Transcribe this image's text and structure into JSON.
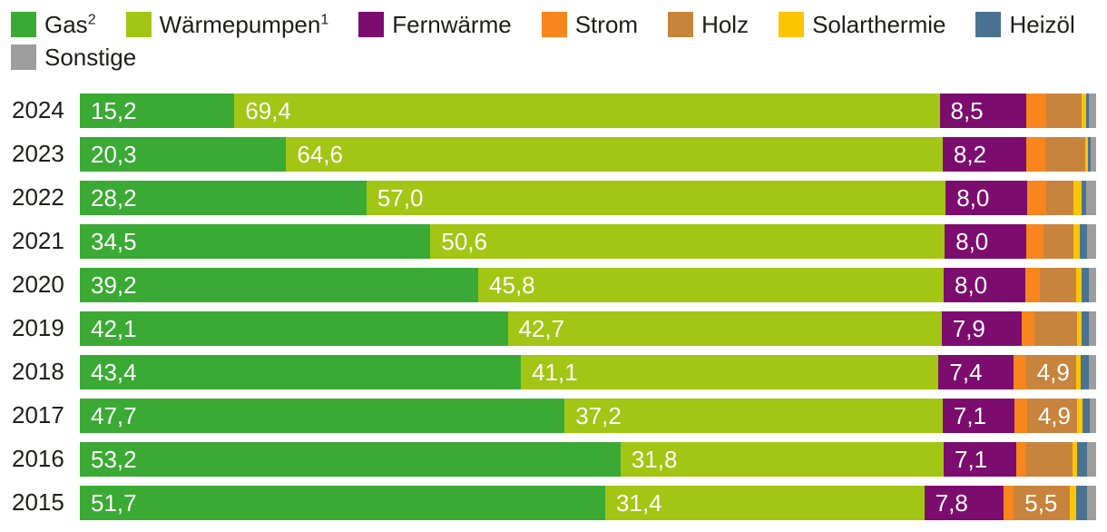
{
  "accent_colors": {
    "gas": "#3aaa35",
    "waermepumpen": "#a3c514",
    "fernwaerme": "#7c0d6e",
    "strom": "#f8861d",
    "holz": "#c8843c",
    "solarthermie": "#fcc500",
    "heizoel": "#4a7392",
    "sonstige": "#9d9d9d",
    "text": "#1d1d1b",
    "bar_label": "#ffffff"
  },
  "legend": {
    "rows": [
      [
        {
          "key": "gas",
          "label": "Gas",
          "sup": "2",
          "color": "#3aaa35"
        },
        {
          "key": "waermepumpen",
          "label": "Wärmepumpen",
          "sup": "1",
          "color": "#a3c514"
        },
        {
          "key": "fernwaerme",
          "label": "Fernwärme",
          "sup": "",
          "color": "#7c0d6e"
        },
        {
          "key": "strom",
          "label": "Strom",
          "sup": "",
          "color": "#f8861d"
        },
        {
          "key": "holz",
          "label": "Holz",
          "sup": "",
          "color": "#c8843c"
        },
        {
          "key": "solarthermie",
          "label": "Solarthermie",
          "sup": "",
          "color": "#fcc500"
        },
        {
          "key": "heizoel",
          "label": "Heizöl",
          "sup": "",
          "color": "#4a7392"
        }
      ],
      [
        {
          "key": "sonstige",
          "label": "Sonstige",
          "sup": "",
          "color": "#9d9d9d"
        }
      ]
    ]
  },
  "chart_data": {
    "type": "bar",
    "stacked": true,
    "orientation": "horizontal",
    "unit": "percent",
    "xlim": [
      0,
      100
    ],
    "grid": false,
    "legend_position": "top",
    "decimal_separator": ",",
    "label_threshold": 4.9,
    "categories": [
      "2024",
      "2023",
      "2022",
      "2021",
      "2020",
      "2019",
      "2018",
      "2017",
      "2016",
      "2015"
    ],
    "series": [
      {
        "key": "gas",
        "name": "Gas",
        "color": "#3aaa35",
        "values": [
          15.2,
          20.3,
          28.2,
          34.5,
          39.2,
          42.1,
          43.4,
          47.7,
          53.2,
          51.7
        ]
      },
      {
        "key": "waermepumpen",
        "name": "Wärmepumpen",
        "color": "#a3c514",
        "values": [
          69.4,
          64.6,
          57.0,
          50.6,
          45.8,
          42.7,
          41.1,
          37.2,
          31.8,
          31.4
        ]
      },
      {
        "key": "fernwaerme",
        "name": "Fernwärme",
        "color": "#7c0d6e",
        "values": [
          8.5,
          8.2,
          8.0,
          8.0,
          8.0,
          7.9,
          7.4,
          7.1,
          7.1,
          7.8
        ]
      },
      {
        "key": "strom",
        "name": "Strom",
        "color": "#f8861d",
        "values": [
          2.0,
          1.9,
          1.9,
          1.7,
          1.5,
          1.2,
          1.2,
          1.2,
          1.0,
          1.0
        ]
      },
      {
        "key": "holz",
        "name": "Holz",
        "color": "#c8843c",
        "values": [
          3.5,
          3.9,
          2.7,
          3.0,
          3.5,
          4.2,
          4.9,
          4.9,
          4.6,
          5.5
        ]
      },
      {
        "key": "solarthermie",
        "name": "Solarthermie",
        "color": "#fcc500",
        "values": [
          0.4,
          0.3,
          0.8,
          0.6,
          0.6,
          0.5,
          0.5,
          0.6,
          0.4,
          0.6
        ]
      },
      {
        "key": "heizoel",
        "name": "Heizöl",
        "color": "#4a7392",
        "values": [
          0.3,
          0.3,
          0.4,
          0.7,
          0.7,
          0.7,
          0.8,
          0.7,
          1.0,
          1.1
        ]
      },
      {
        "key": "sonstige",
        "name": "Sonstige",
        "color": "#9d9d9d",
        "values": [
          0.7,
          0.5,
          1.0,
          0.9,
          0.7,
          0.7,
          0.7,
          0.6,
          0.9,
          0.9
        ]
      }
    ],
    "bar_value_labels": {
      "2024": {
        "gas": "15,2",
        "waermepumpen": "69,4",
        "fernwaerme": "8,5"
      },
      "2023": {
        "gas": "20,3",
        "waermepumpen": "64,6",
        "fernwaerme": "8,2"
      },
      "2022": {
        "gas": "28,2",
        "waermepumpen": "57,0",
        "fernwaerme": "8,0"
      },
      "2021": {
        "gas": "34,5",
        "waermepumpen": "50,6",
        "fernwaerme": "8,0"
      },
      "2020": {
        "gas": "39,2",
        "waermepumpen": "45,8",
        "fernwaerme": "8,0"
      },
      "2019": {
        "gas": "42,1",
        "waermepumpen": "42,7",
        "fernwaerme": "7,9"
      },
      "2018": {
        "gas": "43,4",
        "waermepumpen": "41,1",
        "fernwaerme": "7,4",
        "holz": "4,9"
      },
      "2017": {
        "gas": "47,7",
        "waermepumpen": "37,2",
        "fernwaerme": "7,1",
        "holz": "4,9"
      },
      "2016": {
        "gas": "53,2",
        "waermepumpen": "31,8",
        "fernwaerme": "7,1"
      },
      "2015": {
        "gas": "51,7",
        "waermepumpen": "31,4",
        "fernwaerme": "7,8",
        "holz": "5,5"
      }
    }
  }
}
